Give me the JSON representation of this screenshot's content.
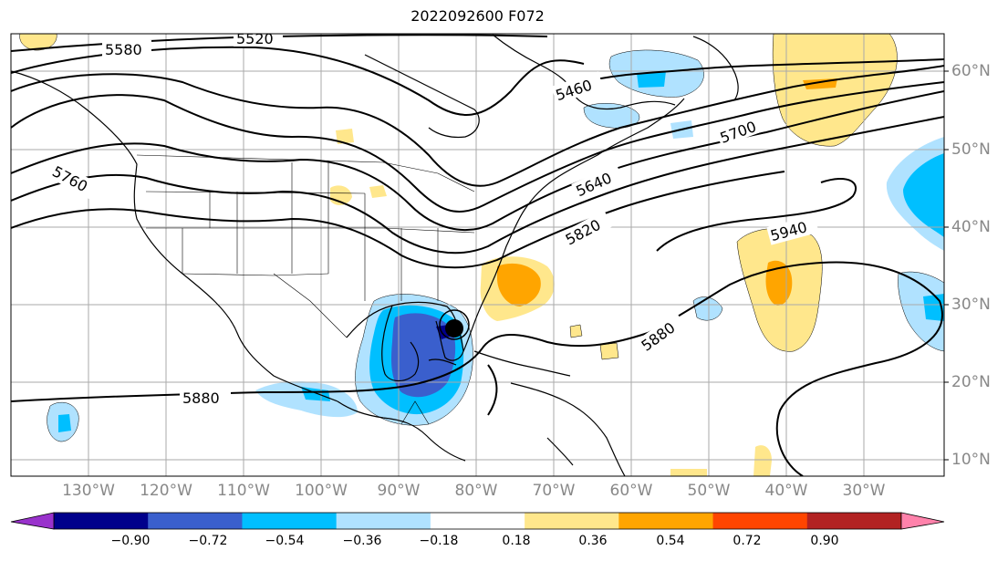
{
  "title": "2022092600 F072",
  "map": {
    "lon_ticks": [
      "130°W",
      "120°W",
      "110°W",
      "100°W",
      "90°W",
      "80°W",
      "70°W",
      "60°W",
      "50°W",
      "40°W",
      "30°W"
    ],
    "lat_ticks": [
      "60°N",
      "50°N",
      "40°N",
      "30°N",
      "20°N",
      "10°N"
    ],
    "contour_labels": [
      "5580",
      "5520",
      "5460",
      "5700",
      "5640",
      "5760",
      "5820",
      "5940",
      "5880",
      "5880"
    ],
    "storm_marker": "hurricane-center"
  },
  "colorbar": {
    "ticks": [
      "−0.90",
      "−0.72",
      "−0.54",
      "−0.36",
      "−0.18",
      "0.18",
      "0.36",
      "0.54",
      "0.72",
      "0.90"
    ],
    "colors": [
      "#9932cc",
      "#00008b",
      "#3a5fcd",
      "#00bfff",
      "#b0e2ff",
      "#ffffff",
      "#ffe78c",
      "#ffa500",
      "#ff4500",
      "#b22222",
      "#ff82ab"
    ]
  }
}
